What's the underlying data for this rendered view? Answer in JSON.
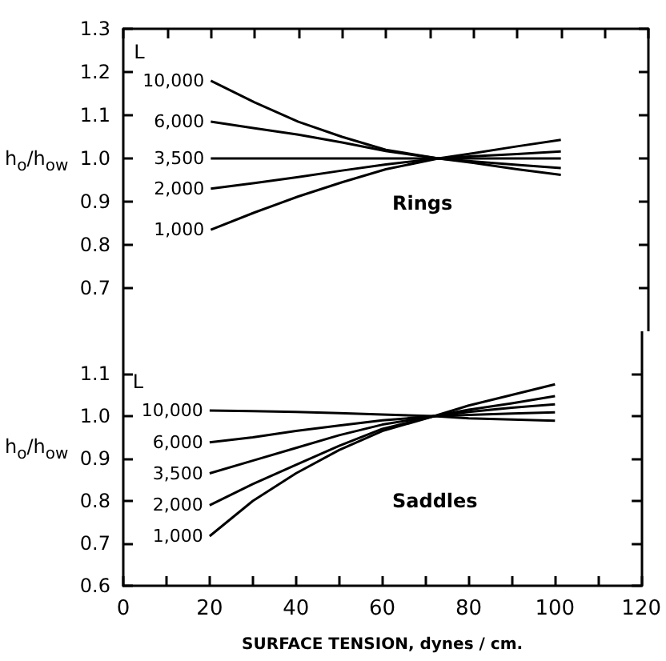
{
  "chart_data": [
    {
      "type": "line",
      "ylabel": "h$_{o}$/h$_{ow}$",
      "legend_title": "L",
      "legend": "left",
      "annotations": [
        "Rings"
      ],
      "xlim": [
        0,
        120
      ],
      "xticks": [
        0,
        {
          "value": 10,
          "label": null
        },
        20,
        {
          "value": 30,
          "label": null
        },
        40,
        {
          "value": 50,
          "label": null
        },
        60,
        {
          "value": 70,
          "label": null
        },
        80,
        {
          "value": 90,
          "label": null
        },
        100,
        {
          "value": 110,
          "label": null
        },
        120
      ],
      "ylim": [
        0.6,
        1.3
      ],
      "yticks": [
        0.7,
        0.8,
        0.9,
        {
          "value": 1,
          "label": "1.0"
        },
        1.1,
        1.2,
        1.3
      ],
      "tick_labels": "y",
      "grid": false,
      "marker": "none",
      "line_style": "solid",
      "x": [
        20,
        30,
        40,
        50,
        60,
        72,
        80,
        90,
        100
      ],
      "series": [
        {
          "name": "10,000",
          "color": "#000000",
          "values": [
            1.18,
            1.13,
            1.085,
            1.05,
            1.02,
            1.0,
            0.99,
            0.975,
            0.962
          ]
        },
        {
          "name": "6,000",
          "color": "#000000",
          "values": [
            1.085,
            1.07,
            1.055,
            1.037,
            1.017,
            1.0,
            0.993,
            0.985,
            0.978
          ]
        },
        {
          "name": "3,500",
          "color": "#000000",
          "values": [
            1.0,
            1.0,
            1.0,
            1.0,
            1.0,
            1.0,
            1.0,
            1.0,
            1.0
          ]
        },
        {
          "name": "2,000",
          "color": "#000000",
          "values": [
            0.93,
            0.943,
            0.957,
            0.972,
            0.986,
            1.0,
            1.005,
            1.01,
            1.016
          ]
        },
        {
          "name": "1,000",
          "color": "#000000",
          "values": [
            0.835,
            0.875,
            0.912,
            0.945,
            0.975,
            1.0,
            1.012,
            1.028,
            1.043
          ]
        }
      ]
    },
    {
      "type": "line",
      "ylabel": "h$_{o}$/h$_{ow}$",
      "xlabel": "SURFACE TENSION, dynes / cm.",
      "legend_title": "L",
      "legend": "left",
      "annotations": [
        "Saddles"
      ],
      "xlim": [
        0,
        120
      ],
      "xticks": [
        0,
        {
          "value": 10,
          "label": null
        },
        20,
        {
          "value": 30,
          "label": null
        },
        40,
        {
          "value": 50,
          "label": null
        },
        60,
        {
          "value": 70,
          "label": null
        },
        80,
        {
          "value": 90,
          "label": null
        },
        100,
        {
          "value": 110,
          "label": null
        },
        120
      ],
      "ylim": [
        0.6,
        1.2
      ],
      "yticks": [
        0.6,
        0.7,
        0.8,
        0.9,
        {
          "value": 1,
          "label": "1.0"
        },
        1.1
      ],
      "grid": false,
      "marker": "none",
      "line_style": "solid",
      "x": [
        20,
        30,
        40,
        50,
        60,
        72,
        80,
        90,
        100
      ],
      "series": [
        {
          "name": "10,000",
          "color": "#000000",
          "values": [
            1.013,
            1.012,
            1.01,
            1.007,
            1.004,
            1.0,
            0.995,
            0.992,
            0.989
          ]
        },
        {
          "name": "6,000",
          "color": "#000000",
          "values": [
            0.938,
            0.95,
            0.965,
            0.978,
            0.99,
            1.0,
            1.003,
            1.006,
            1.009
          ]
        },
        {
          "name": "3,500",
          "color": "#000000",
          "values": [
            0.865,
            0.895,
            0.925,
            0.955,
            0.98,
            1.0,
            1.01,
            1.02,
            1.028
          ]
        },
        {
          "name": "2,000",
          "color": "#000000",
          "values": [
            0.79,
            0.84,
            0.885,
            0.93,
            0.97,
            1.0,
            1.015,
            1.03,
            1.047
          ]
        },
        {
          "name": "1,000",
          "color": "#000000",
          "values": [
            0.717,
            0.8,
            0.865,
            0.92,
            0.965,
            1.0,
            1.025,
            1.05,
            1.075
          ]
        }
      ]
    }
  ]
}
